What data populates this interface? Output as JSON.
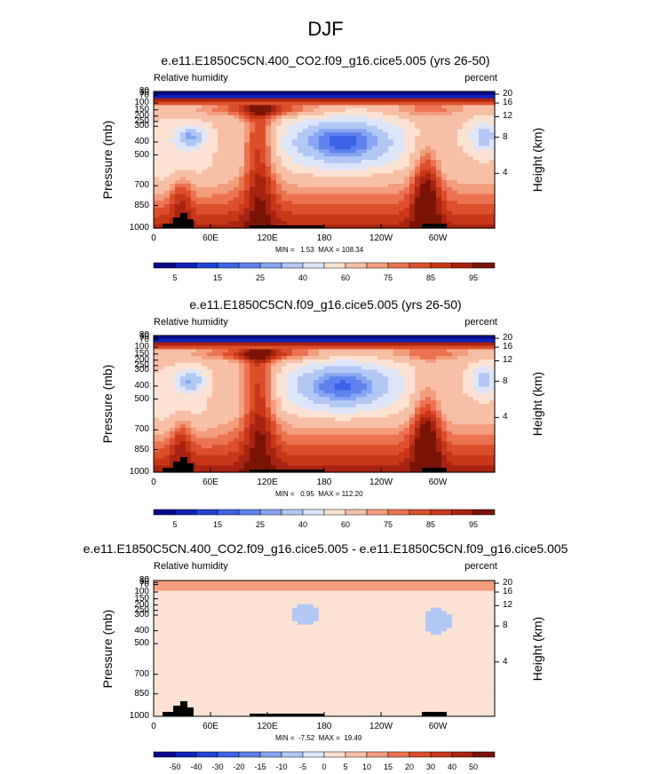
{
  "figure_title": "DJF",
  "chart_data": [
    {
      "type": "heatmap",
      "title": "e.e11.E1850C5CN.400_CO2.f09_g16.cice5.005 (yrs 26-50)",
      "left_subtitle": "Relative humidity",
      "right_subtitle": "percent",
      "ylabel": "Pressure (mb)",
      "ylabel_right": "Height (km)",
      "x_ticks": [
        "0",
        "60E",
        "120E",
        "180",
        "120W",
        "60W"
      ],
      "y_ticks": [
        "30",
        "50",
        "70",
        "100",
        "150",
        "200",
        "250",
        "300",
        "400",
        "500",
        "700",
        "850",
        "1000"
      ],
      "y_right_ticks": [
        "20",
        "16",
        "12",
        "8",
        "4"
      ],
      "stats": "MIN =   1.53  MAX = 108.34",
      "colorbar_ticks": [
        "5",
        "15",
        "25",
        "40",
        "60",
        "75",
        "85",
        "95"
      ],
      "colorbar_levels": [
        0,
        5,
        10,
        15,
        20,
        25,
        30,
        40,
        50,
        60,
        70,
        75,
        80,
        85,
        90,
        95,
        100
      ],
      "min": 1.53,
      "max": 108.34
    },
    {
      "type": "heatmap",
      "title": "e.e11.E1850C5CN.f09_g16.cice5.005 (yrs 26-50)",
      "left_subtitle": "Relative humidity",
      "right_subtitle": "percent",
      "ylabel": "Pressure (mb)",
      "ylabel_right": "Height (km)",
      "x_ticks": [
        "0",
        "60E",
        "120E",
        "180",
        "120W",
        "60W"
      ],
      "y_ticks": [
        "30",
        "50",
        "70",
        "100",
        "150",
        "200",
        "250",
        "300",
        "400",
        "500",
        "700",
        "850",
        "1000"
      ],
      "y_right_ticks": [
        "20",
        "16",
        "12",
        "8",
        "4"
      ],
      "stats": "MIN =   0.95  MAX = 112.20",
      "colorbar_ticks": [
        "5",
        "15",
        "25",
        "40",
        "60",
        "75",
        "85",
        "95"
      ],
      "colorbar_levels": [
        0,
        5,
        10,
        15,
        20,
        25,
        30,
        40,
        50,
        60,
        70,
        75,
        80,
        85,
        90,
        95,
        100
      ],
      "min": 0.95,
      "max": 112.2
    },
    {
      "type": "heatmap",
      "title": "e.e11.E1850C5CN.400_CO2.f09_g16.cice5.005 - e.e11.E1850C5CN.f09_g16.cice5.005",
      "left_subtitle": "Relative humidity",
      "right_subtitle": "percent",
      "ylabel": "Pressure (mb)",
      "ylabel_right": "Height (km)",
      "x_ticks": [
        "0",
        "60E",
        "120E",
        "180",
        "120W",
        "60W"
      ],
      "y_ticks": [
        "30",
        "50",
        "70",
        "100",
        "150",
        "200",
        "250",
        "300",
        "400",
        "500",
        "700",
        "850",
        "1000"
      ],
      "y_right_ticks": [
        "20",
        "16",
        "12",
        "8",
        "4"
      ],
      "stats": "MIN =  -7.52  MAX =  19.49",
      "colorbar_ticks": [
        "-50",
        "-40",
        "-30",
        "-20",
        "-15",
        "-10",
        "-5",
        "0",
        "5",
        "10",
        "15",
        "20",
        "30",
        "40",
        "50"
      ],
      "min": -7.52,
      "max": 19.49
    }
  ],
  "colors": {
    "abs_palette": [
      "#08088f",
      "#0f22b8",
      "#1f44d6",
      "#3d64e6",
      "#5f82ee",
      "#87a5f2",
      "#b3c7f5",
      "#dde6f8",
      "#fbe2d3",
      "#f7c0a6",
      "#f29d7c",
      "#eb7352",
      "#dd4f2c",
      "#c8371a",
      "#a82410",
      "#7a1406"
    ],
    "diff_palette": [
      "#08088f",
      "#0f22b8",
      "#1f44d6",
      "#3d64e6",
      "#5f82ee",
      "#87a5f2",
      "#b3c7f5",
      "#dde6f8",
      "#fbe2d3",
      "#f7c0a6",
      "#f29d7c",
      "#eb7352",
      "#dd4f2c",
      "#c8371a",
      "#a82410",
      "#7a1406"
    ],
    "topography": "#000000"
  }
}
